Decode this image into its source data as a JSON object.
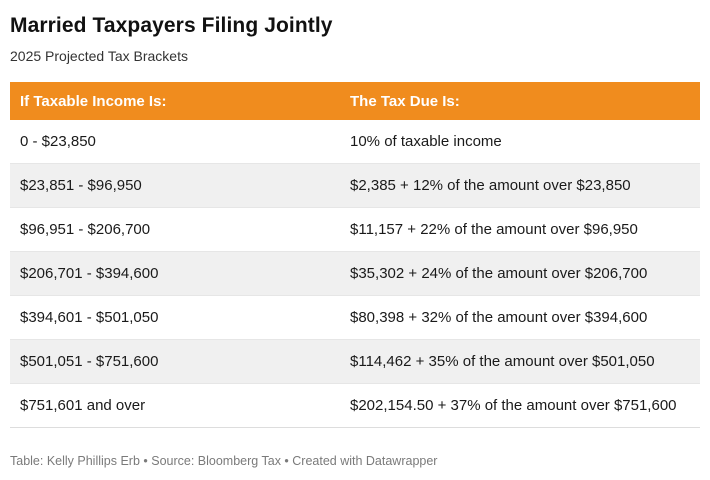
{
  "title": "Married Taxpayers Filing Jointly",
  "subtitle": "2025 Projected Tax Brackets",
  "table": {
    "headers": [
      "If Taxable Income Is:",
      "The Tax Due Is:"
    ],
    "rows": [
      [
        "0 - $23,850",
        "10% of taxable income"
      ],
      [
        "$23,851 - $96,950",
        "$2,385 + 12% of the amount over $23,850"
      ],
      [
        "$96,951 - $206,700",
        "$11,157 + 22% of the amount over $96,950"
      ],
      [
        "$206,701 - $394,600",
        "$35,302 + 24% of the amount over $206,700"
      ],
      [
        "$394,601 - $501,050",
        "$80,398 + 32% of the amount over $394,600"
      ],
      [
        "$501,051 - $751,600",
        "$114,462 + 35% of the amount over $501,050"
      ],
      [
        "$751,601 and over",
        "$202,154.50 + 37% of the amount over $751,600"
      ]
    ]
  },
  "footer": "Table: Kelly Phillips Erb • Source: Bloomberg Tax • Created with Datawrapper",
  "colors": {
    "header_bg": "#F08C1E",
    "header_text": "#FFFFFF",
    "row_stripe": "#F0F0F0",
    "footer_text": "#7A7A7A"
  },
  "chart_data": {
    "type": "table",
    "title": "Married Taxpayers Filing Jointly",
    "subtitle": "2025 Projected Tax Brackets",
    "columns": [
      "If Taxable Income Is:",
      "The Tax Due Is:"
    ],
    "rows": [
      [
        "0 - $23,850",
        "10% of taxable income"
      ],
      [
        "$23,851 - $96,950",
        "$2,385 + 12% of the amount over $23,850"
      ],
      [
        "$96,951 - $206,700",
        "$11,157 + 22% of the amount over $96,950"
      ],
      [
        "$206,701 - $394,600",
        "$35,302 + 24% of the amount over $206,700"
      ],
      [
        "$394,601 - $501,050",
        "$80,398 + 32% of the amount over $394,600"
      ],
      [
        "$501,051 - $751,600",
        "$114,462 + 35% of the amount over $501,050"
      ],
      [
        "$751,601 and over",
        "$202,154.50 + 37% of the amount over $751,600"
      ]
    ],
    "brackets": [
      {
        "income_min": 0,
        "income_max": 23850,
        "rate_pct": 10,
        "base_tax": 0
      },
      {
        "income_min": 23851,
        "income_max": 96950,
        "rate_pct": 12,
        "base_tax": 2385
      },
      {
        "income_min": 96951,
        "income_max": 206700,
        "rate_pct": 22,
        "base_tax": 11157
      },
      {
        "income_min": 206701,
        "income_max": 394600,
        "rate_pct": 24,
        "base_tax": 35302
      },
      {
        "income_min": 394601,
        "income_max": 501050,
        "rate_pct": 32,
        "base_tax": 80398
      },
      {
        "income_min": 501051,
        "income_max": 751600,
        "rate_pct": 35,
        "base_tax": 114462
      },
      {
        "income_min": 751601,
        "income_max": null,
        "rate_pct": 37,
        "base_tax": 202154.5
      }
    ],
    "layout": {
      "striped": true,
      "header_color": "#F08C1E"
    }
  }
}
